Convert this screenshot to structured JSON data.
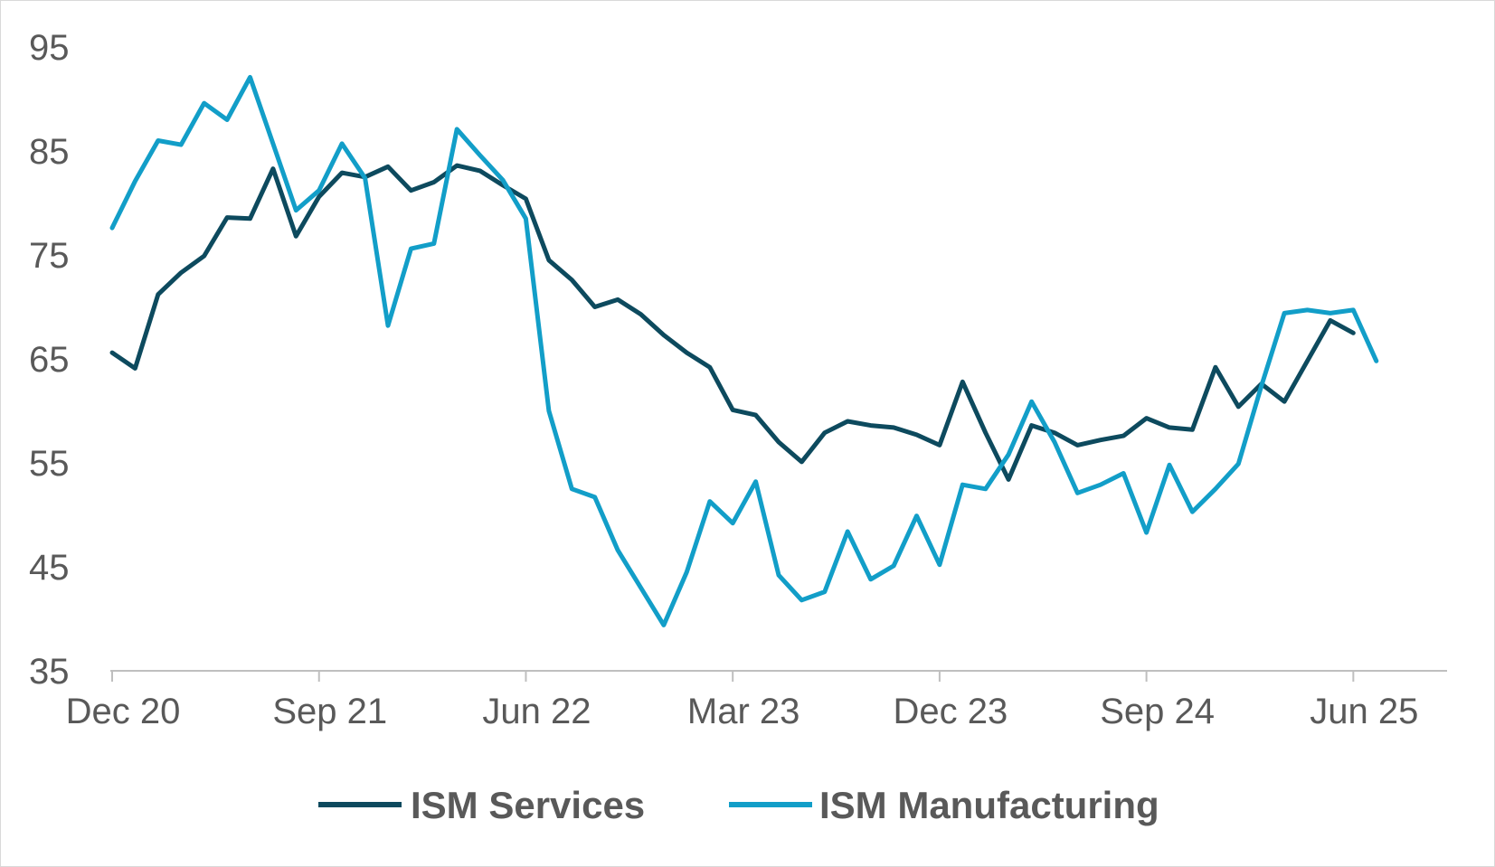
{
  "chart_data": {
    "type": "line",
    "title": "",
    "xlabel": "",
    "ylabel": "",
    "ylim": [
      35,
      95
    ],
    "yticks": [
      35,
      45,
      55,
      65,
      75,
      85,
      95
    ],
    "xticks": [
      "Dec 20",
      "Sep 21",
      "Jun 22",
      "Mar 23",
      "Dec 23",
      "Sep 24",
      "Jun 25"
    ],
    "x_start": "Dec 20",
    "grid": false,
    "legend": {
      "position": "bottom"
    },
    "colors": {
      "ISM Services": "#0d4a5e",
      "ISM Manufacturing": "#129ec8"
    },
    "series": [
      {
        "name": "ISM Services",
        "values": [
          65.6,
          64.1,
          71.2,
          73.3,
          74.9,
          78.6,
          78.5,
          83.3,
          76.8,
          80.6,
          82.9,
          82.5,
          83.5,
          81.2,
          82.0,
          83.6,
          83.1,
          81.7,
          80.4,
          74.5,
          72.6,
          70.0,
          70.7,
          69.3,
          67.3,
          65.6,
          64.2,
          60.1,
          59.6,
          57.0,
          55.1,
          57.9,
          59.0,
          58.6,
          58.4,
          57.7,
          56.7,
          62.8,
          57.9,
          53.4,
          58.6,
          57.9,
          56.7,
          57.2,
          57.6,
          59.3,
          58.4,
          58.2,
          64.2,
          60.4,
          62.6,
          60.9,
          64.8,
          68.7,
          67.5
        ],
        "x_index": [
          0,
          1,
          2,
          3,
          4,
          5,
          6,
          7,
          8,
          9,
          10,
          11,
          12,
          13,
          14,
          15,
          16,
          17,
          18,
          19,
          20,
          21,
          22,
          23,
          24,
          25,
          26,
          27,
          28,
          29,
          30,
          31,
          32,
          33,
          34,
          35,
          36,
          37,
          38,
          39,
          40,
          41,
          42,
          43,
          44,
          45,
          46,
          47,
          48,
          49,
          50,
          51,
          52,
          53,
          54
        ]
      },
      {
        "name": "ISM Manufacturing",
        "values": [
          77.6,
          82.1,
          86.0,
          85.6,
          89.6,
          88.0,
          92.1,
          85.7,
          79.3,
          81.2,
          85.7,
          82.4,
          68.2,
          75.6,
          76.1,
          87.1,
          84.6,
          82.2,
          78.5,
          60.0,
          52.5,
          51.7,
          46.6,
          43.0,
          39.4,
          44.5,
          51.3,
          49.2,
          53.2,
          44.2,
          41.8,
          42.6,
          48.4,
          43.8,
          45.1,
          49.9,
          45.2,
          52.9,
          52.5,
          55.8,
          60.9,
          57.0,
          52.1,
          52.9,
          54.0,
          48.3,
          54.8,
          50.3,
          52.5,
          54.9,
          62.4,
          69.4,
          69.7,
          69.4,
          69.7,
          64.8
        ],
        "x_index": [
          0,
          1,
          2,
          3,
          4,
          5,
          6,
          7,
          8,
          9,
          10,
          11,
          12,
          13,
          14,
          15,
          16,
          17,
          18,
          19,
          20,
          21,
          22,
          23,
          24,
          25,
          26,
          27,
          28,
          29,
          30,
          31,
          32,
          33,
          34,
          35,
          36,
          37,
          38,
          39,
          40,
          41,
          42,
          43,
          44,
          45,
          46,
          47,
          48,
          49,
          50,
          51,
          52,
          53,
          54,
          55
        ]
      }
    ]
  }
}
